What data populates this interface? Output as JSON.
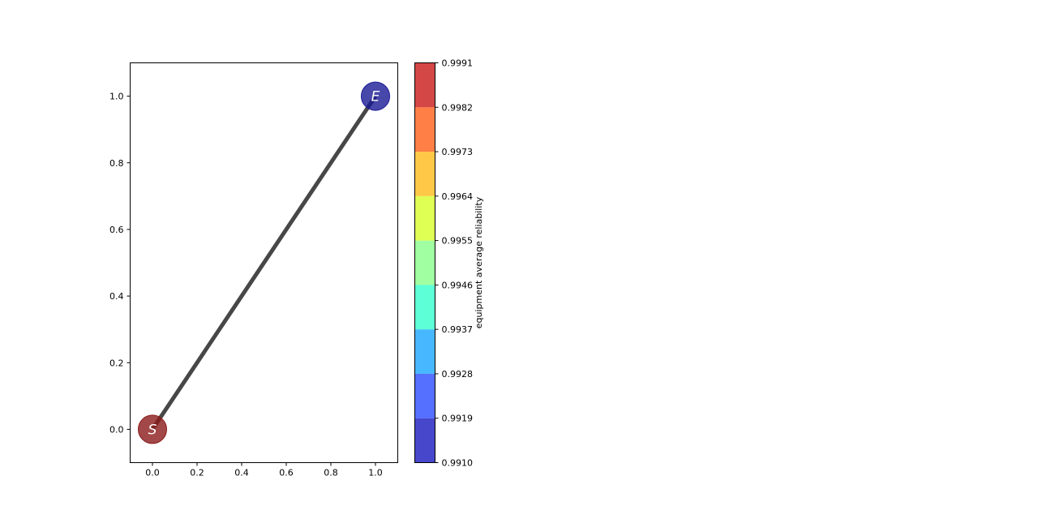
{
  "chart_data": {
    "type": "scatter",
    "title": "",
    "xlabel": "",
    "ylabel": "",
    "xlim": [
      -0.1,
      1.1
    ],
    "ylim": [
      -0.1,
      1.1
    ],
    "x_ticks": [
      0.0,
      0.2,
      0.4,
      0.6,
      0.8,
      1.0
    ],
    "y_ticks": [
      0.0,
      0.2,
      0.4,
      0.6,
      0.8,
      1.0
    ],
    "x_tick_labels": [
      "0.0",
      "0.2",
      "0.4",
      "0.6",
      "0.8",
      "1.0"
    ],
    "y_tick_labels": [
      "0.0",
      "0.2",
      "0.4",
      "0.6",
      "0.8",
      "1.0"
    ],
    "grid": false,
    "nodes": [
      {
        "label": "S",
        "x": 0.0,
        "y": 0.0,
        "color": "#8b1a1a"
      },
      {
        "label": "E",
        "x": 1.0,
        "y": 1.0,
        "color": "#1a1a96"
      }
    ],
    "edges": [
      {
        "from": "S",
        "to": "E",
        "color": "#333333"
      }
    ],
    "colorbar": {
      "label": "equipment average reliability",
      "min": 0.991,
      "max": 0.9991,
      "ticks": [
        0.991,
        0.9919,
        0.9928,
        0.9937,
        0.9946,
        0.9955,
        0.9964,
        0.9973,
        0.9982,
        0.9991
      ],
      "tick_labels": [
        "0.9910",
        "0.9919",
        "0.9928",
        "0.9937",
        "0.9946",
        "0.9955",
        "0.9964",
        "0.9973",
        "0.9982",
        "0.9991"
      ],
      "colors": [
        "#0000b8",
        "#1438ff",
        "#009cff",
        "#1effc8",
        "#7bff7b",
        "#d2ff14",
        "#ffb400",
        "#ff4e00",
        "#c40000"
      ]
    }
  }
}
